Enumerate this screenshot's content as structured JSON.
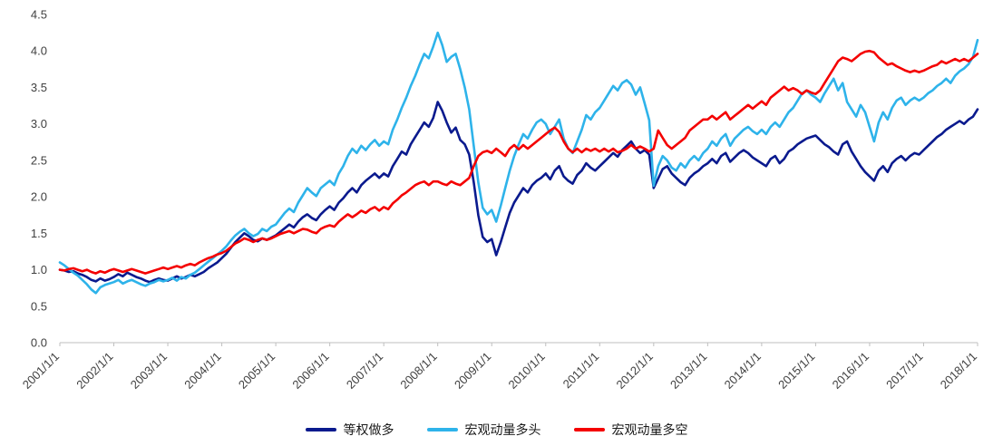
{
  "chart_data": {
    "type": "line",
    "title": "",
    "xlabel": "",
    "ylabel": "",
    "ylim": [
      0,
      4.5
    ],
    "grid": false,
    "legend_position": "bottom",
    "y_ticks": [
      0,
      0.5,
      1.0,
      1.5,
      2.0,
      2.5,
      3.0,
      3.5,
      4.0,
      4.5
    ],
    "x_tick_labels": [
      "2001/1/1",
      "2002/1/1",
      "2003/1/1",
      "2004/1/1",
      "2005/1/1",
      "2006/1/1",
      "2007/1/1",
      "2008/1/1",
      "2009/1/1",
      "2010/1/1",
      "2011/1/1",
      "2012/1/1",
      "2013/1/1",
      "2014/1/1",
      "2015/1/1",
      "2016/1/1",
      "2017/1/1",
      "2018/1/1"
    ],
    "x_frequency": "monthly",
    "series": [
      {
        "name": "等权做多",
        "color": "#0a1a8e",
        "values": [
          1.0,
          0.99,
          0.97,
          0.98,
          0.95,
          0.93,
          0.9,
          0.86,
          0.84,
          0.88,
          0.85,
          0.87,
          0.9,
          0.94,
          0.91,
          0.96,
          0.93,
          0.9,
          0.88,
          0.85,
          0.83,
          0.86,
          0.88,
          0.86,
          0.85,
          0.88,
          0.91,
          0.88,
          0.9,
          0.93,
          0.91,
          0.94,
          0.97,
          1.02,
          1.06,
          1.1,
          1.16,
          1.22,
          1.3,
          1.38,
          1.44,
          1.5,
          1.46,
          1.41,
          1.39,
          1.43,
          1.41,
          1.44,
          1.47,
          1.52,
          1.57,
          1.62,
          1.58,
          1.66,
          1.72,
          1.76,
          1.71,
          1.68,
          1.76,
          1.82,
          1.87,
          1.82,
          1.92,
          1.98,
          2.06,
          2.12,
          2.06,
          2.16,
          2.22,
          2.27,
          2.32,
          2.26,
          2.32,
          2.28,
          2.42,
          2.52,
          2.62,
          2.58,
          2.72,
          2.82,
          2.92,
          3.02,
          2.96,
          3.08,
          3.3,
          3.18,
          3.02,
          2.88,
          2.95,
          2.78,
          2.72,
          2.58,
          2.2,
          1.75,
          1.45,
          1.38,
          1.42,
          1.2,
          1.38,
          1.58,
          1.78,
          1.92,
          2.02,
          2.12,
          2.06,
          2.16,
          2.22,
          2.26,
          2.32,
          2.24,
          2.36,
          2.42,
          2.28,
          2.22,
          2.18,
          2.3,
          2.36,
          2.46,
          2.4,
          2.36,
          2.42,
          2.48,
          2.54,
          2.6,
          2.55,
          2.64,
          2.7,
          2.76,
          2.66,
          2.6,
          2.64,
          2.58,
          2.12,
          2.25,
          2.38,
          2.42,
          2.32,
          2.26,
          2.2,
          2.16,
          2.26,
          2.32,
          2.36,
          2.42,
          2.46,
          2.52,
          2.46,
          2.56,
          2.6,
          2.48,
          2.54,
          2.6,
          2.64,
          2.6,
          2.54,
          2.5,
          2.46,
          2.42,
          2.52,
          2.56,
          2.46,
          2.52,
          2.62,
          2.66,
          2.72,
          2.76,
          2.8,
          2.82,
          2.84,
          2.78,
          2.72,
          2.68,
          2.62,
          2.58,
          2.72,
          2.76,
          2.62,
          2.52,
          2.42,
          2.34,
          2.28,
          2.22,
          2.36,
          2.42,
          2.34,
          2.46,
          2.52,
          2.56,
          2.5,
          2.56,
          2.6,
          2.58,
          2.64,
          2.7,
          2.76,
          2.82,
          2.86,
          2.92,
          2.96,
          3.0,
          3.04,
          3.0,
          3.06,
          3.1,
          3.2
        ]
      },
      {
        "name": "宏观动量多头",
        "color": "#2eb3ea",
        "values": [
          1.1,
          1.06,
          1.01,
          0.96,
          0.92,
          0.86,
          0.8,
          0.73,
          0.68,
          0.76,
          0.79,
          0.81,
          0.83,
          0.86,
          0.81,
          0.84,
          0.86,
          0.83,
          0.8,
          0.78,
          0.81,
          0.83,
          0.86,
          0.84,
          0.86,
          0.89,
          0.85,
          0.9,
          0.88,
          0.93,
          0.96,
          1.01,
          1.06,
          1.11,
          1.16,
          1.21,
          1.26,
          1.32,
          1.4,
          1.47,
          1.52,
          1.56,
          1.5,
          1.46,
          1.49,
          1.56,
          1.53,
          1.59,
          1.62,
          1.7,
          1.78,
          1.84,
          1.79,
          1.92,
          2.02,
          2.12,
          2.06,
          2.01,
          2.12,
          2.17,
          2.22,
          2.16,
          2.32,
          2.42,
          2.56,
          2.66,
          2.6,
          2.7,
          2.64,
          2.72,
          2.78,
          2.7,
          2.76,
          2.72,
          2.92,
          3.06,
          3.22,
          3.36,
          3.52,
          3.66,
          3.82,
          3.96,
          3.9,
          4.06,
          4.25,
          4.08,
          3.85,
          3.92,
          3.96,
          3.75,
          3.5,
          3.2,
          2.7,
          2.2,
          1.85,
          1.76,
          1.82,
          1.66,
          1.88,
          2.12,
          2.36,
          2.56,
          2.72,
          2.86,
          2.8,
          2.92,
          3.02,
          3.06,
          3.0,
          2.86,
          2.96,
          3.06,
          2.8,
          2.66,
          2.6,
          2.76,
          2.92,
          3.12,
          3.06,
          3.16,
          3.22,
          3.32,
          3.42,
          3.52,
          3.46,
          3.56,
          3.6,
          3.54,
          3.4,
          3.5,
          3.28,
          3.05,
          2.15,
          2.42,
          2.56,
          2.5,
          2.4,
          2.36,
          2.46,
          2.4,
          2.5,
          2.56,
          2.5,
          2.6,
          2.66,
          2.76,
          2.7,
          2.8,
          2.86,
          2.7,
          2.8,
          2.86,
          2.92,
          2.96,
          2.9,
          2.86,
          2.92,
          2.86,
          2.96,
          3.02,
          2.96,
          3.06,
          3.16,
          3.22,
          3.32,
          3.42,
          3.46,
          3.4,
          3.36,
          3.3,
          3.42,
          3.52,
          3.62,
          3.46,
          3.56,
          3.3,
          3.2,
          3.1,
          3.26,
          3.16,
          2.96,
          2.76,
          3.02,
          3.16,
          3.06,
          3.22,
          3.32,
          3.36,
          3.26,
          3.32,
          3.36,
          3.32,
          3.36,
          3.42,
          3.46,
          3.52,
          3.56,
          3.62,
          3.56,
          3.66,
          3.72,
          3.76,
          3.82,
          3.92,
          4.15
        ]
      },
      {
        "name": "宏观动量多空",
        "color": "#f40000",
        "values": [
          1.0,
          0.99,
          1.01,
          1.02,
          1.0,
          0.98,
          1.0,
          0.97,
          0.95,
          0.98,
          0.96,
          0.99,
          1.01,
          0.99,
          0.97,
          0.99,
          1.01,
          0.99,
          0.97,
          0.95,
          0.97,
          0.99,
          1.01,
          1.03,
          1.01,
          1.03,
          1.05,
          1.03,
          1.06,
          1.08,
          1.06,
          1.1,
          1.13,
          1.16,
          1.18,
          1.21,
          1.23,
          1.26,
          1.31,
          1.36,
          1.39,
          1.43,
          1.41,
          1.38,
          1.41,
          1.43,
          1.41,
          1.43,
          1.46,
          1.49,
          1.51,
          1.53,
          1.5,
          1.53,
          1.56,
          1.55,
          1.52,
          1.5,
          1.56,
          1.59,
          1.61,
          1.59,
          1.66,
          1.71,
          1.76,
          1.72,
          1.76,
          1.81,
          1.78,
          1.83,
          1.86,
          1.81,
          1.86,
          1.83,
          1.91,
          1.96,
          2.02,
          2.06,
          2.11,
          2.16,
          2.19,
          2.21,
          2.16,
          2.21,
          2.21,
          2.18,
          2.16,
          2.21,
          2.18,
          2.16,
          2.21,
          2.26,
          2.42,
          2.56,
          2.61,
          2.63,
          2.6,
          2.66,
          2.61,
          2.56,
          2.66,
          2.71,
          2.65,
          2.71,
          2.66,
          2.71,
          2.76,
          2.81,
          2.86,
          2.91,
          2.95,
          2.89,
          2.76,
          2.66,
          2.61,
          2.66,
          2.61,
          2.66,
          2.63,
          2.66,
          2.62,
          2.66,
          2.62,
          2.66,
          2.61,
          2.63,
          2.66,
          2.71,
          2.66,
          2.69,
          2.66,
          2.62,
          2.66,
          2.91,
          2.81,
          2.71,
          2.66,
          2.71,
          2.76,
          2.81,
          2.91,
          2.96,
          3.01,
          3.06,
          3.06,
          3.11,
          3.06,
          3.11,
          3.16,
          3.06,
          3.11,
          3.16,
          3.21,
          3.26,
          3.21,
          3.26,
          3.31,
          3.26,
          3.36,
          3.41,
          3.46,
          3.51,
          3.46,
          3.49,
          3.46,
          3.41,
          3.46,
          3.43,
          3.41,
          3.46,
          3.56,
          3.66,
          3.76,
          3.86,
          3.91,
          3.89,
          3.86,
          3.91,
          3.96,
          3.99,
          4.0,
          3.98,
          3.91,
          3.86,
          3.81,
          3.83,
          3.79,
          3.76,
          3.73,
          3.71,
          3.73,
          3.71,
          3.73,
          3.76,
          3.79,
          3.81,
          3.86,
          3.83,
          3.86,
          3.89,
          3.86,
          3.89,
          3.86,
          3.91,
          3.96
        ]
      }
    ]
  },
  "legend": {
    "items": [
      {
        "label": "等权做多",
        "color": "#0a1a8e"
      },
      {
        "label": "宏观动量多头",
        "color": "#2eb3ea"
      },
      {
        "label": "宏观动量多空",
        "color": "#f40000"
      }
    ]
  }
}
